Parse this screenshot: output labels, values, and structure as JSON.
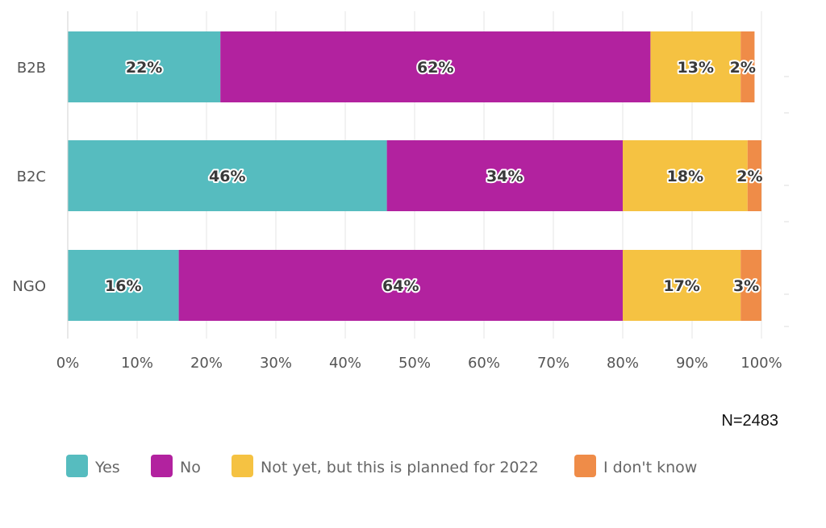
{
  "chart_data": {
    "type": "bar",
    "orientation": "horizontal",
    "stacked": true,
    "categories": [
      "B2B",
      "B2C",
      "NGO"
    ],
    "series": [
      {
        "name": "Yes",
        "values": [
          22,
          46,
          16
        ],
        "labels": [
          "22%",
          "46%",
          "16%"
        ],
        "color": "#56bcbf"
      },
      {
        "name": "No",
        "values": [
          62,
          34,
          64
        ],
        "labels": [
          "62%",
          "34%",
          "64%"
        ],
        "color": "#b2229f"
      },
      {
        "name": "Not yet, but this is planned for 2022",
        "values": [
          13,
          18,
          17
        ],
        "labels": [
          "13%",
          "18%",
          "17%"
        ],
        "color": "#f5c242"
      },
      {
        "name": "I don't know",
        "values": [
          2,
          2,
          3
        ],
        "labels": [
          "2%",
          "2%",
          "3%"
        ],
        "color": "#ef8c48"
      }
    ],
    "xlim": [
      0,
      100
    ],
    "xticks": [
      "0%",
      "10%",
      "20%",
      "30%",
      "40%",
      "50%",
      "60%",
      "70%",
      "80%",
      "90%",
      "100%"
    ],
    "grid": true,
    "legend_position": "bottom-left",
    "annotation": "N=2483"
  }
}
